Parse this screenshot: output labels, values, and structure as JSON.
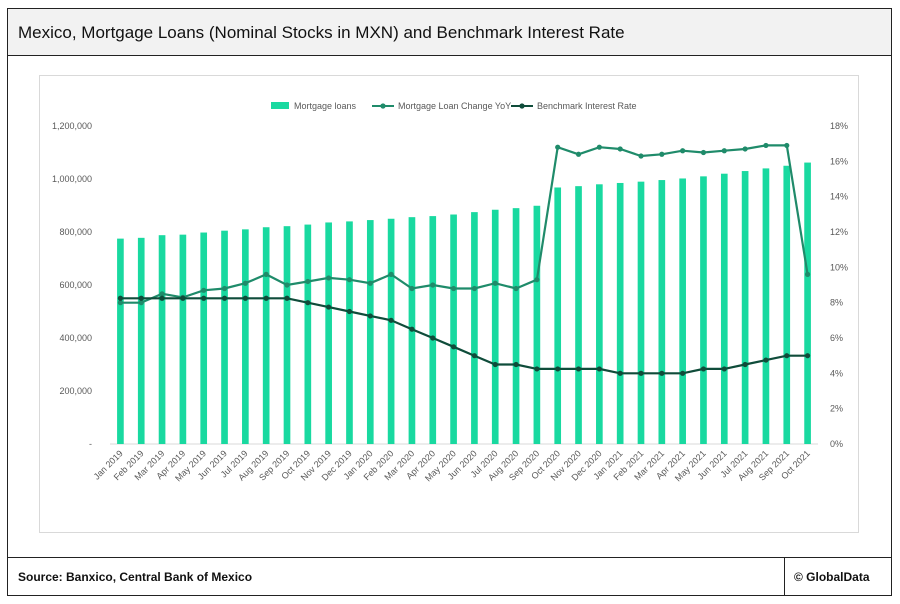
{
  "header": {
    "title": "Mexico, Mortgage Loans (Nominal Stocks in MXN) and Benchmark Interest Rate"
  },
  "footer": {
    "source": "Source: Banxico, Central Bank of Mexico",
    "credit": "© GlobalData"
  },
  "chart_data": {
    "type": "bar",
    "categories": [
      "Jan 2019",
      "Feb 2019",
      "Mar 2019",
      "Apr 2019",
      "May 2019",
      "Jun 2019",
      "Jul 2019",
      "Aug 2019",
      "Sep 2019",
      "Oct 2019",
      "Nov 2019",
      "Dec 2019",
      "Jan 2020",
      "Feb 2020",
      "Mar 2020",
      "Apr 2020",
      "May 2020",
      "Jun 2020",
      "Jul 2020",
      "Aug 2020",
      "Sep 2020",
      "Oct 2020",
      "Nov 2020",
      "Dec 2020",
      "Jan 2021",
      "Feb 2021",
      "Mar 2021",
      "Apr 2021",
      "May 2021",
      "Jun 2021",
      "Jul 2021",
      "Aug 2021",
      "Sep 2021",
      "Oct 2021"
    ],
    "series": [
      {
        "name": "Mortgage loans",
        "type": "bar",
        "axis": "left",
        "color": "#19d9a0",
        "values": [
          775000,
          778000,
          788000,
          790000,
          798000,
          805000,
          810000,
          818000,
          822000,
          828000,
          836000,
          840000,
          845000,
          850000,
          856000,
          860000,
          866000,
          875000,
          884000,
          890000,
          899000,
          968000,
          973000,
          980000,
          985000,
          990000,
          996000,
          1002000,
          1010000,
          1020000,
          1030000,
          1040000,
          1050000,
          1062000
        ]
      },
      {
        "name": "Mortgage Loan Change YoY",
        "type": "line",
        "axis": "right",
        "color": "#1f8b6a",
        "values": [
          8.0,
          8.0,
          8.5,
          8.3,
          8.7,
          8.8,
          9.1,
          9.6,
          9.0,
          9.2,
          9.4,
          9.3,
          9.1,
          9.6,
          8.8,
          9.0,
          8.8,
          8.8,
          9.1,
          8.8,
          9.3,
          16.8,
          16.4,
          16.8,
          16.7,
          16.3,
          16.4,
          16.6,
          16.5,
          16.6,
          16.7,
          16.9,
          16.9,
          9.6
        ]
      },
      {
        "name": "Benchmark Interest Rate",
        "type": "line",
        "axis": "right",
        "color": "#0f4c3a",
        "values": [
          8.25,
          8.25,
          8.25,
          8.25,
          8.25,
          8.25,
          8.25,
          8.25,
          8.25,
          8.0,
          7.75,
          7.5,
          7.25,
          7.0,
          6.5,
          6.0,
          5.5,
          5.0,
          4.5,
          4.5,
          4.25,
          4.25,
          4.25,
          4.25,
          4.0,
          4.0,
          4.0,
          4.0,
          4.25,
          4.25,
          4.5,
          4.75,
          5.0,
          5.0
        ]
      }
    ],
    "y_left": {
      "ylim": [
        0,
        1200000
      ],
      "ticks": [
        "-",
        "200,000",
        "400,000",
        "600,000",
        "800,000",
        "1,000,000",
        "1,200,000"
      ]
    },
    "y_right": {
      "ylim": [
        0,
        18
      ],
      "ticks": [
        "0%",
        "2%",
        "4%",
        "6%",
        "8%",
        "10%",
        "12%",
        "14%",
        "16%",
        "18%"
      ]
    },
    "grid": false,
    "legend": "top-center"
  }
}
